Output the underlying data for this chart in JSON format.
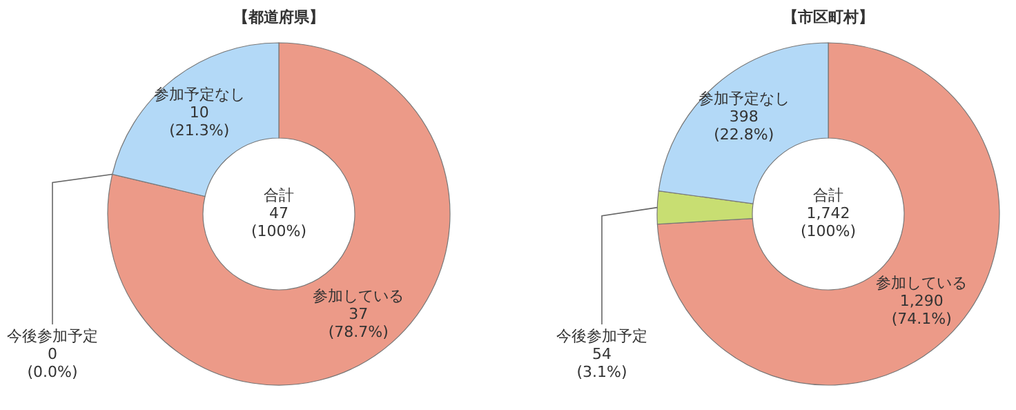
{
  "chart_data": [
    {
      "type": "donut",
      "title": "【都道府県】",
      "categories": [
        "参加している",
        "今後参加予定",
        "参加予定なし"
      ],
      "values": [
        37,
        0,
        10
      ],
      "colors": [
        "#ec9a88",
        "#c8de72",
        "#b3d9f7"
      ],
      "value_labels": [
        "37\n(78.7%)",
        "0\n(0.0%)",
        "10\n(21.3%)"
      ],
      "annotations": [
        "合計\n47\n(100%)"
      ]
    },
    {
      "type": "donut",
      "title": "【市区町村】",
      "categories": [
        "参加している",
        "今後参加予定",
        "参加予定なし"
      ],
      "values": [
        1290,
        54,
        398
      ],
      "colors": [
        "#ec9a88",
        "#c8de72",
        "#b3d9f7"
      ],
      "value_labels": [
        "1,290\n(74.1%)",
        "54\n(3.1%)",
        "398\n(22.8%)"
      ],
      "annotations": [
        "合計\n1,742\n(100%)"
      ]
    }
  ]
}
